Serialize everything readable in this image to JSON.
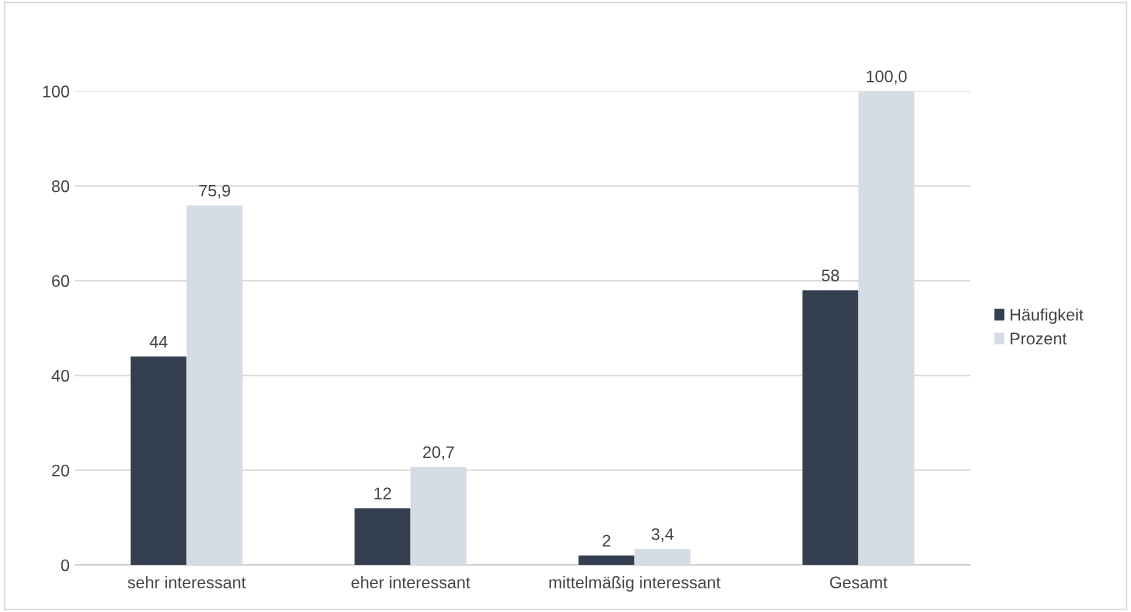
{
  "chart_data": {
    "type": "bar",
    "categories": [
      "sehr interessant",
      "eher interessant",
      "mittelmäßig interessant",
      "Gesamt"
    ],
    "series": [
      {
        "name": "Häufigkeit",
        "color": "#333f50",
        "values": [
          44,
          12,
          2,
          58
        ],
        "value_labels": [
          "44",
          "12",
          "2",
          "58"
        ]
      },
      {
        "name": "Prozent",
        "color": "#d6dce5",
        "values": [
          75.9,
          20.7,
          3.4,
          100.0
        ],
        "value_labels": [
          "75,9",
          "20,7",
          "3,4",
          "100,0"
        ]
      }
    ],
    "ylim": [
      0,
      100
    ],
    "yticks": [
      0,
      20,
      40,
      60,
      80,
      100
    ],
    "grid": "y",
    "legend": "right"
  }
}
